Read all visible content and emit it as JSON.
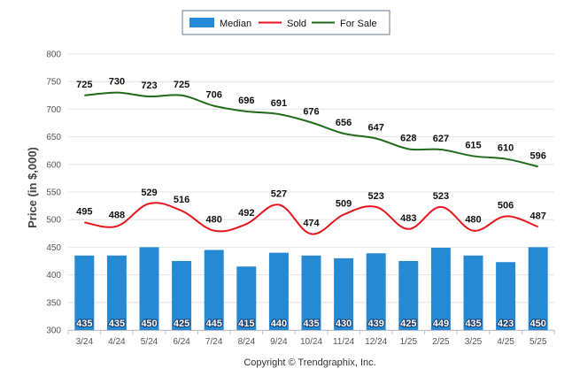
{
  "chart_data": {
    "type": "bar",
    "categories": [
      "3/24",
      "4/24",
      "5/24",
      "6/24",
      "7/24",
      "8/24",
      "9/24",
      "10/24",
      "11/24",
      "12/24",
      "1/25",
      "2/25",
      "3/25",
      "4/25",
      "5/25"
    ],
    "series": [
      {
        "name": "Median",
        "kind": "bar",
        "color": "#2589d4",
        "values": [
          435,
          435,
          450,
          425,
          445,
          415,
          440,
          435,
          430,
          439,
          425,
          449,
          435,
          423,
          450
        ]
      },
      {
        "name": "Sold",
        "kind": "line",
        "color": "#e8141c",
        "values": [
          495,
          488,
          529,
          516,
          480,
          492,
          527,
          474,
          509,
          523,
          483,
          523,
          480,
          506,
          487
        ]
      },
      {
        "name": "For Sale",
        "kind": "line",
        "color": "#1f6b1a",
        "values": [
          725,
          730,
          723,
          725,
          706,
          696,
          691,
          676,
          656,
          647,
          628,
          627,
          615,
          610,
          596
        ]
      }
    ],
    "ylabel": "Price (in $,000)",
    "xlabel": "",
    "ylim": [
      300,
      800
    ],
    "yticks": [
      300,
      350,
      400,
      450,
      500,
      550,
      600,
      650,
      700,
      750,
      800
    ],
    "grid": true,
    "legend": "top-center"
  },
  "footer": "Copyright © Trendgraphix, Inc."
}
